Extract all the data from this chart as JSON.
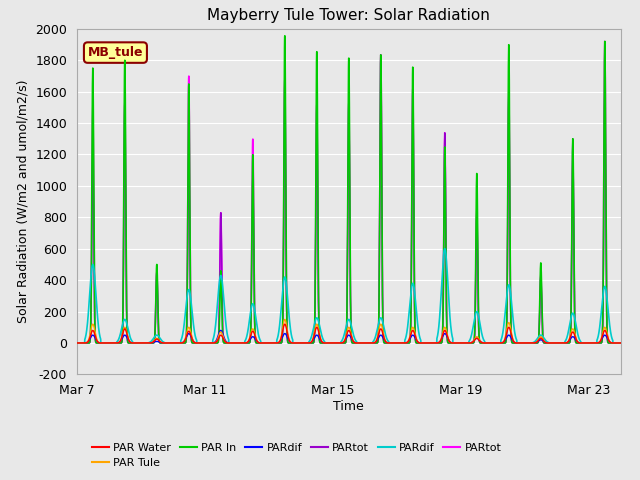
{
  "title": "Mayberry Tule Tower: Solar Radiation",
  "xlabel": "Time",
  "ylabel": "Solar Radiation (W/m2 and umol/m2/s)",
  "ylim": [
    -200,
    2000
  ],
  "yticks": [
    -200,
    0,
    200,
    400,
    600,
    800,
    1000,
    1200,
    1400,
    1600,
    1800,
    2000
  ],
  "xtick_labels": [
    "Mar 7",
    "Mar 11",
    "Mar 15",
    "Mar 19",
    "Mar 23"
  ],
  "bg_color": "#e8e8e8",
  "annotation_text": "MB_tule",
  "annotation_color": "#8b0000",
  "annotation_bg": "#ffff99",
  "annotation_border": "#8b0000",
  "series": [
    {
      "label": "PAR Water",
      "color": "#ff0000",
      "lw": 1.0
    },
    {
      "label": "PAR Tule",
      "color": "#ffa500",
      "lw": 1.0
    },
    {
      "label": "PAR In",
      "color": "#00cc00",
      "lw": 1.2
    },
    {
      "label": "PARdif",
      "color": "#0000ff",
      "lw": 1.0
    },
    {
      "label": "PARtot",
      "color": "#9900cc",
      "lw": 1.0
    },
    {
      "label": "PARdif",
      "color": "#00cccc",
      "lw": 1.2
    },
    {
      "label": "PARtot",
      "color": "#ff00ff",
      "lw": 1.2
    }
  ],
  "n_days": 17,
  "day_hours": 12,
  "pts_per_day": 200,
  "peaks_green": [
    1750,
    1800,
    500,
    1650,
    460,
    1200,
    1960,
    1860,
    1820,
    1840,
    1760,
    1250,
    1080,
    1900,
    510,
    1300,
    1920
  ],
  "peaks_magenta": [
    1500,
    1530,
    450,
    1700,
    830,
    1300,
    1680,
    1520,
    1530,
    1840,
    1620,
    1340,
    840,
    1600,
    430,
    1160,
    1920
  ],
  "peaks_red": [
    80,
    90,
    25,
    75,
    50,
    75,
    120,
    100,
    80,
    90,
    80,
    80,
    30,
    100,
    30,
    70,
    80
  ],
  "peaks_orange": [
    120,
    100,
    30,
    100,
    70,
    90,
    150,
    120,
    100,
    120,
    100,
    100,
    40,
    130,
    40,
    90,
    100
  ],
  "peaks_cyan": [
    500,
    150,
    50,
    340,
    430,
    250,
    420,
    160,
    150,
    160,
    380,
    600,
    200,
    370,
    50,
    190,
    360
  ],
  "peaks_blue": [
    50,
    50,
    10,
    60,
    80,
    40,
    60,
    50,
    50,
    50,
    50,
    60,
    30,
    50,
    20,
    40,
    50
  ],
  "peaks_purple": [
    1200,
    1530,
    450,
    1200,
    830,
    1050,
    1680,
    1520,
    1530,
    1840,
    1620,
    1340,
    840,
    1600,
    430,
    1300,
    1600
  ]
}
